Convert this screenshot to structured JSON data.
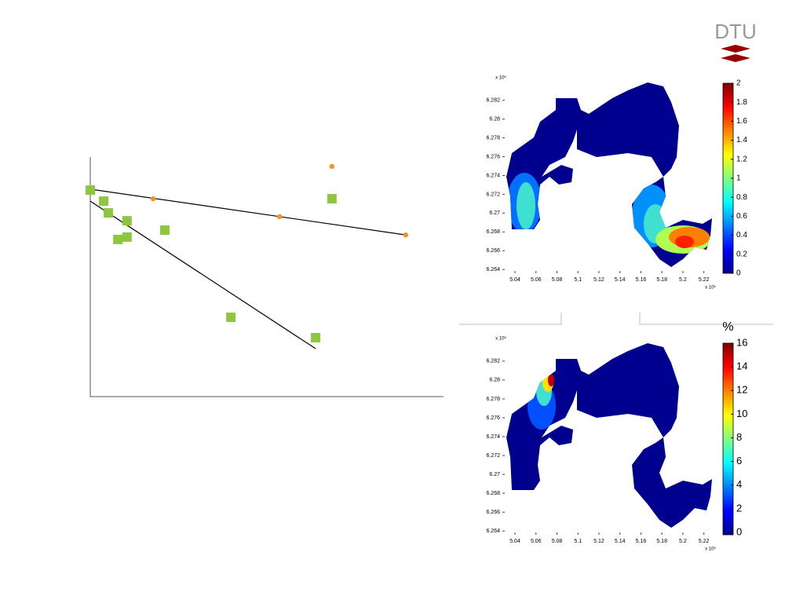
{
  "logo": {
    "text": "DTU"
  },
  "chart_data": [
    {
      "type": "scatter",
      "xlim": [
        0,
        100
      ],
      "ylim": [
        0,
        100
      ],
      "series": [
        {
          "color": "#8dc63f",
          "marker": "square",
          "x": [
            0,
            3.8,
            5.1,
            10.4,
            7.8,
            10.4,
            21.1,
            39.8,
            63.8,
            68.4
          ],
          "values": [
            86.2,
            81.6,
            76.7,
            73.4,
            65.6,
            66.6,
            69.5,
            33.1,
            24.6,
            82.6
          ]
        },
        {
          "color": "#f7941d",
          "marker": "circle",
          "x": [
            17.8,
            53.6,
            89.3,
            68.4
          ],
          "values": [
            82.6,
            75.1,
            67.5,
            96.1
          ]
        }
      ],
      "lines": [
        {
          "color": "#000000",
          "x": [
            0,
            89.3
          ],
          "values": [
            86.6,
            67.5
          ]
        },
        {
          "color": "#000000",
          "x": [
            0,
            63.8
          ],
          "values": [
            81.6,
            20.0
          ]
        }
      ]
    },
    {
      "type": "map",
      "xlim": [
        5.028,
        5.23
      ],
      "ylim": [
        6.2636,
        6.2839
      ],
      "xticks": [
        5.04,
        5.06,
        5.08,
        5.1,
        5.12,
        5.14,
        5.16,
        5.18,
        5.2,
        5.22
      ],
      "yticks": [
        6.264,
        6.266,
        6.268,
        6.27,
        6.272,
        6.274,
        6.276,
        6.278,
        6.28,
        6.282
      ],
      "x_exponent_label": "x 10⁶",
      "y_exponent_label": "x 10⁶",
      "colormap": "jet",
      "clim": [
        0,
        2
      ],
      "cticks": [
        0,
        0.2,
        0.4,
        0.6,
        0.8,
        1,
        1.2,
        1.4,
        1.6,
        1.8,
        2
      ]
    },
    {
      "type": "map",
      "xlim": [
        5.028,
        5.23
      ],
      "ylim": [
        6.2636,
        6.2839
      ],
      "xticks": [
        5.04,
        5.06,
        5.08,
        5.1,
        5.12,
        5.14,
        5.16,
        5.18,
        5.2,
        5.22
      ],
      "yticks": [
        6.264,
        6.266,
        6.268,
        6.27,
        6.272,
        6.274,
        6.276,
        6.278,
        6.28,
        6.282
      ],
      "x_exponent_label": "x 10⁶",
      "y_exponent_label": "x 10⁶",
      "colormap": "jet",
      "clim": [
        -0.2,
        16
      ],
      "cticks": [
        0,
        2,
        4,
        6,
        8,
        10,
        12,
        14,
        16
      ],
      "colorbar_label": "%"
    }
  ]
}
